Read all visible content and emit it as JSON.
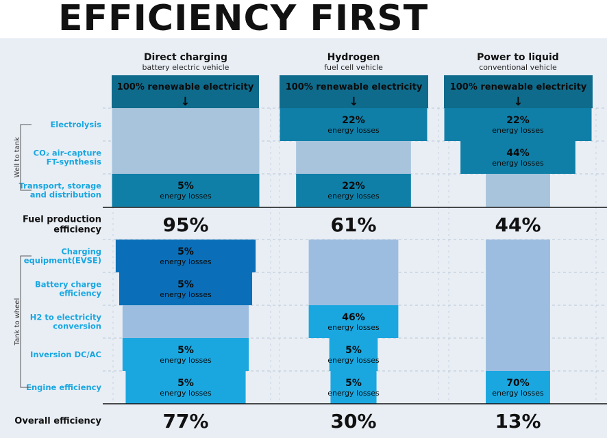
{
  "title": "EFFICIENCY FIRST",
  "colors": {
    "accent": "#1aa7e0",
    "title": "#111111",
    "label": "#1aa7e0",
    "background": "#e9eef5",
    "source_box": "#0f6b8c"
  },
  "chart_data": {
    "type": "table",
    "columns": [
      {
        "name": "Direct charging",
        "subtitle": "battery electric vehicle"
      },
      {
        "name": "Hydrogen",
        "subtitle": "fuel cell vehicle"
      },
      {
        "name": "Power to liquid",
        "subtitle": "conventional vehicle"
      }
    ],
    "source_label": "100% renewable electricity",
    "arrow": "↓",
    "loss_text": "energy losses",
    "groups": [
      {
        "name": "Well to tank",
        "rows": [
          "Electrolysis",
          "CO₂ air-capture\nFT-synthesis",
          "Transport, storage\nand distribution"
        ]
      },
      {
        "name": "Tank to wheel",
        "rows": [
          "Charging\nequipment(EVSE)",
          "Battery charge\nefficiency",
          "H2 to electricity\nconversion",
          "Inversion DC/AC",
          "Engine efficiency"
        ]
      }
    ],
    "losses_percent": [
      [
        null,
        null,
        5,
        5,
        5,
        null,
        5,
        5
      ],
      [
        22,
        null,
        22,
        null,
        null,
        46,
        5,
        5
      ],
      [
        22,
        44,
        null,
        null,
        null,
        null,
        null,
        70
      ]
    ],
    "summary_rows": [
      {
        "label": "Fuel production\nefficiency",
        "values": [
          "95%",
          "61%",
          "44%"
        ]
      },
      {
        "label": "Overall efficiency",
        "values": [
          "77%",
          "30%",
          "13%"
        ]
      }
    ]
  }
}
